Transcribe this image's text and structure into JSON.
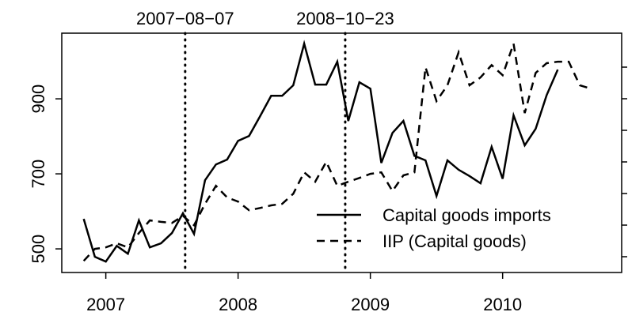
{
  "chart_data": {
    "type": "line",
    "x": [
      2006.833,
      2006.917,
      2007.0,
      2007.083,
      2007.167,
      2007.25,
      2007.333,
      2007.417,
      2007.5,
      2007.583,
      2007.667,
      2007.75,
      2007.833,
      2007.917,
      2008.0,
      2008.083,
      2008.167,
      2008.25,
      2008.333,
      2008.417,
      2008.5,
      2008.583,
      2008.667,
      2008.75,
      2008.833,
      2008.917,
      2009.0,
      2009.083,
      2009.167,
      2009.25,
      2009.333,
      2009.417,
      2009.5,
      2009.583,
      2009.667,
      2009.75,
      2009.833,
      2009.917,
      2010.0,
      2010.083,
      2010.167,
      2010.25,
      2010.333,
      2010.417,
      2010.5,
      2010.583,
      2010.667
    ],
    "series": [
      {
        "name": "Capital goods imports",
        "color": "#000000",
        "dash": "solid",
        "values": [
          580,
          479,
          466,
          508,
          487,
          576,
          504,
          515,
          542,
          595,
          540,
          683,
          725,
          738,
          788,
          801,
          854,
          908,
          908,
          936,
          1047,
          938,
          938,
          999,
          841,
          944,
          927,
          729,
          809,
          841,
          748,
          736,
          641,
          736,
          711,
          694,
          675,
          772,
          687,
          856,
          776,
          820,
          910,
          978,
          null,
          null,
          null
        ]
      },
      {
        "name": "IIP (Capital goods)",
        "color": "#000000",
        "dash": "dashed",
        "values": [
          468,
          500,
          504,
          515,
          504,
          542,
          576,
          572,
          569,
          588,
          563,
          620,
          668,
          637,
          626,
          603,
          609,
          616,
          620,
          647,
          704,
          679,
          732,
          668,
          679,
          689,
          700,
          704,
          654,
          696,
          704,
          984,
          894,
          936,
          1024,
          936,
          957,
          990,
          963,
          1047,
          862,
          969,
          995,
          999,
          999,
          936,
          927
        ]
      }
    ],
    "xlim": [
      2006.667,
      2010.9
    ],
    "xticks": [
      2007,
      2008,
      2009,
      2010
    ],
    "ylim": [
      437,
      1075
    ],
    "yticks": [
      500,
      700,
      900
    ],
    "vlines": [
      {
        "x": 2007.6,
        "label": "2007−08−07"
      },
      {
        "x": 2008.81,
        "label": "2008−10−23"
      }
    ],
    "legend": "bottomright"
  }
}
